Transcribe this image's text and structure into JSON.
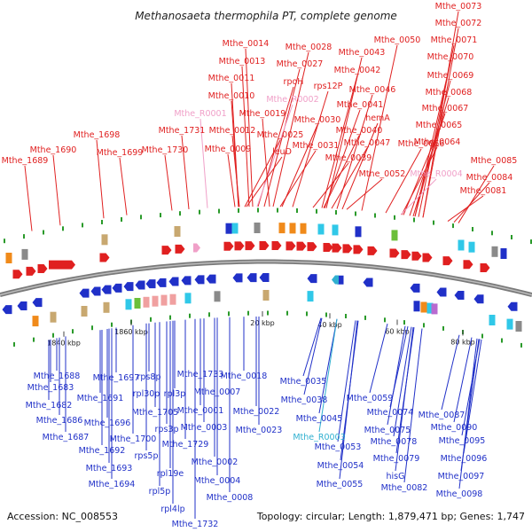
{
  "title": "Methanosaeta thermophila PT, complete genome",
  "footer": {
    "accession": "Accession: NC_008553",
    "summary": "Topology: circular; Length: 1,879,471 bp; Genes: 1,747"
  },
  "colors": {
    "forward": "#e02020",
    "reverse": "#2030c8",
    "forward_rna": "#f0a0c8",
    "reverse_rna": "#30b0d0"
  },
  "scale_ticks": [
    "1840 kbp",
    "1860 kbp",
    "20 kbp",
    "40 kbp",
    "60 kbp",
    "80 kbp"
  ],
  "top_labels": [
    {
      "text": "Mthe_0073",
      "kind": "cds"
    },
    {
      "text": "Mthe_0072",
      "kind": "cds"
    },
    {
      "text": "Mthe_0071",
      "kind": "cds"
    },
    {
      "text": "Mthe_0050",
      "kind": "cds"
    },
    {
      "text": "Mthe_0070",
      "kind": "cds"
    },
    {
      "text": "Mthe_0014",
      "kind": "cds"
    },
    {
      "text": "Mthe_0028",
      "kind": "cds"
    },
    {
      "text": "Mthe_0043",
      "kind": "cds"
    },
    {
      "text": "Mthe_0013",
      "kind": "cds"
    },
    {
      "text": "Mthe_0027",
      "kind": "cds"
    },
    {
      "text": "Mthe_0042",
      "kind": "cds"
    },
    {
      "text": "Mthe_0069",
      "kind": "cds"
    },
    {
      "text": "Mthe_0011",
      "kind": "cds"
    },
    {
      "text": "rpoH",
      "kind": "cds"
    },
    {
      "text": "rps12P",
      "kind": "cds"
    },
    {
      "text": "Mthe_0046",
      "kind": "cds"
    },
    {
      "text": "Mthe_0068",
      "kind": "cds"
    },
    {
      "text": "Mthe_0010",
      "kind": "cds"
    },
    {
      "text": "Mthe_R0002",
      "kind": "rna"
    },
    {
      "text": "Mthe_0041",
      "kind": "cds"
    },
    {
      "text": "Mthe_0067",
      "kind": "cds"
    },
    {
      "text": "Mthe_R0001",
      "kind": "rna"
    },
    {
      "text": "Mthe_0019",
      "kind": "cds"
    },
    {
      "text": "Mthe_0030",
      "kind": "cds"
    },
    {
      "text": "hemA",
      "kind": "cds"
    },
    {
      "text": "Mthe_0065",
      "kind": "cds"
    },
    {
      "text": "Mthe_1731",
      "kind": "cds"
    },
    {
      "text": "Mthe_0012",
      "kind": "cds"
    },
    {
      "text": "Mthe_0025",
      "kind": "cds"
    },
    {
      "text": "Mthe_0040",
      "kind": "cds"
    },
    {
      "text": "Mthe_0064",
      "kind": "cds"
    },
    {
      "text": "Mthe_1698",
      "kind": "cds"
    },
    {
      "text": "Mthe_0031",
      "kind": "cds"
    },
    {
      "text": "Mthe_0047",
      "kind": "cds"
    },
    {
      "text": "Mthe_0066",
      "kind": "cds"
    },
    {
      "text": "Mthe_1690",
      "kind": "cds"
    },
    {
      "text": "Mthe_1699",
      "kind": "cds"
    },
    {
      "text": "Mthe_1730",
      "kind": "cds"
    },
    {
      "text": "Mthe_0009",
      "kind": "cds"
    },
    {
      "text": "leuD",
      "kind": "cds"
    },
    {
      "text": "Mthe_0039",
      "kind": "cds"
    },
    {
      "text": "Mthe_1689",
      "kind": "cds"
    },
    {
      "text": "Mthe_0085",
      "kind": "cds"
    },
    {
      "text": "Mthe_0052",
      "kind": "cds"
    },
    {
      "text": "Mthe_R0004",
      "kind": "rna"
    },
    {
      "text": "Mthe_0084",
      "kind": "cds"
    },
    {
      "text": "Mthe_0081",
      "kind": "cds"
    }
  ],
  "bottom_labels": [
    {
      "text": "Mthe_1688",
      "kind": "cds"
    },
    {
      "text": "Mthe_1697",
      "kind": "cds"
    },
    {
      "text": "rps8p",
      "kind": "cds"
    },
    {
      "text": "Mthe_1733",
      "kind": "cds"
    },
    {
      "text": "Mthe_0018",
      "kind": "cds"
    },
    {
      "text": "Mthe_1683",
      "kind": "cds"
    },
    {
      "text": "Mthe_1691",
      "kind": "cds"
    },
    {
      "text": "rpl30p",
      "kind": "cds"
    },
    {
      "text": "rpl3p",
      "kind": "cds"
    },
    {
      "text": "Mthe_0007",
      "kind": "cds"
    },
    {
      "text": "Mthe_0035",
      "kind": "cds"
    },
    {
      "text": "Mthe_0038",
      "kind": "cds"
    },
    {
      "text": "Mthe_0059",
      "kind": "cds"
    },
    {
      "text": "Mthe_1682",
      "kind": "cds"
    },
    {
      "text": "Mthe_1705",
      "kind": "cds"
    },
    {
      "text": "Mthe_0001",
      "kind": "cds"
    },
    {
      "text": "Mthe_0022",
      "kind": "cds"
    },
    {
      "text": "Mthe_0074",
      "kind": "cds"
    },
    {
      "text": "Mthe_0087",
      "kind": "cds"
    },
    {
      "text": "Mthe_1686",
      "kind": "cds"
    },
    {
      "text": "Mthe_1696",
      "kind": "cds"
    },
    {
      "text": "Mthe_0045",
      "kind": "cds"
    },
    {
      "text": "rps3p",
      "kind": "cds"
    },
    {
      "text": "Mthe_0003",
      "kind": "cds"
    },
    {
      "text": "Mthe_0075",
      "kind": "cds"
    },
    {
      "text": "Mthe_0090",
      "kind": "cds"
    },
    {
      "text": "Mthe_1687",
      "kind": "cds"
    },
    {
      "text": "Mthe_1700",
      "kind": "cds"
    },
    {
      "text": "Mthe_0023",
      "kind": "cds"
    },
    {
      "text": "Mthe_R0003",
      "kind": "rna"
    },
    {
      "text": "Mthe_0078",
      "kind": "cds"
    },
    {
      "text": "Mthe_0095",
      "kind": "cds"
    },
    {
      "text": "Mthe_1692",
      "kind": "cds"
    },
    {
      "text": "Mthe_1729",
      "kind": "cds"
    },
    {
      "text": "Mthe_0053",
      "kind": "cds"
    },
    {
      "text": "rps5p",
      "kind": "cds"
    },
    {
      "text": "Mthe_0096",
      "kind": "cds"
    },
    {
      "text": "Mthe_0079",
      "kind": "cds"
    },
    {
      "text": "Mthe_1693",
      "kind": "cds"
    },
    {
      "text": "Mthe_0002",
      "kind": "cds"
    },
    {
      "text": "Mthe_0054",
      "kind": "cds"
    },
    {
      "text": "rpl19e",
      "kind": "cds"
    },
    {
      "text": "hisG",
      "kind": "cds"
    },
    {
      "text": "Mthe_0097",
      "kind": "cds"
    },
    {
      "text": "Mthe_0004",
      "kind": "cds"
    },
    {
      "text": "Mthe_1694",
      "kind": "cds"
    },
    {
      "text": "rpl5p",
      "kind": "cds"
    },
    {
      "text": "Mthe_0055",
      "kind": "cds"
    },
    {
      "text": "Mthe_0082",
      "kind": "cds"
    },
    {
      "text": "Mthe_0098",
      "kind": "cds"
    },
    {
      "text": "Mthe_0008",
      "kind": "cds"
    },
    {
      "text": "rpl4lp",
      "kind": "cds"
    },
    {
      "text": "Mthe_1732",
      "kind": "cds"
    }
  ]
}
